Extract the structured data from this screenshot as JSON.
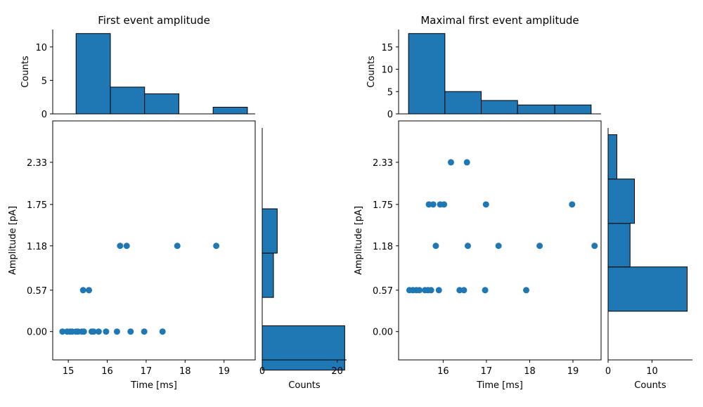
{
  "chart_data": [
    {
      "type": "scatter",
      "title": "First event amplitude",
      "xlabel": "Time [ms]",
      "ylabel": "Amplitude [pA]",
      "xlim": [
        14.6,
        19.8
      ],
      "ylim": [
        -0.39,
        2.9
      ],
      "xticks": [
        15,
        16,
        17,
        18,
        19
      ],
      "yticks": [
        0.0,
        0.57,
        1.18,
        1.75,
        2.33
      ],
      "ytick_labels": [
        "0.00",
        "0.57",
        "1.18",
        "1.75",
        "2.33"
      ],
      "points": [
        {
          "x": 14.85,
          "y": 0.0
        },
        {
          "x": 14.97,
          "y": 0.0
        },
        {
          "x": 15.05,
          "y": 0.0
        },
        {
          "x": 15.1,
          "y": 0.0
        },
        {
          "x": 15.2,
          "y": 0.0
        },
        {
          "x": 15.25,
          "y": 0.0
        },
        {
          "x": 15.35,
          "y": 0.0
        },
        {
          "x": 15.4,
          "y": 0.0
        },
        {
          "x": 15.6,
          "y": 0.0
        },
        {
          "x": 15.65,
          "y": 0.0
        },
        {
          "x": 15.78,
          "y": 0.0
        },
        {
          "x": 15.97,
          "y": 0.0
        },
        {
          "x": 16.25,
          "y": 0.0
        },
        {
          "x": 16.6,
          "y": 0.0
        },
        {
          "x": 16.95,
          "y": 0.0
        },
        {
          "x": 17.42,
          "y": 0.0
        },
        {
          "x": 15.38,
          "y": 0.57
        },
        {
          "x": 15.53,
          "y": 0.57
        },
        {
          "x": 16.33,
          "y": 1.18
        },
        {
          "x": 16.5,
          "y": 1.18
        },
        {
          "x": 17.8,
          "y": 1.18
        },
        {
          "x": 18.8,
          "y": 1.18
        }
      ],
      "hist_top": {
        "ylabel": "Counts",
        "yticks": [
          0,
          5,
          10
        ],
        "ylim": [
          0,
          12.6
        ],
        "bins": [
          {
            "x0": 15.2,
            "x1": 16.08,
            "count": 12
          },
          {
            "x0": 16.08,
            "x1": 16.96,
            "count": 4
          },
          {
            "x0": 16.96,
            "x1": 17.84,
            "count": 3
          },
          {
            "x0": 17.84,
            "x1": 18.72,
            "count": 0
          },
          {
            "x0": 18.72,
            "x1": 19.6,
            "count": 1
          }
        ]
      },
      "hist_right": {
        "xlabel": "Counts",
        "xticks": [
          0,
          20
        ],
        "xlim": [
          0,
          22.5
        ],
        "bins": [
          {
            "y0": -0.53,
            "y1": 0.08,
            "count": 22
          },
          {
            "y0": 0.47,
            "y1": 1.08,
            "count": 3
          },
          {
            "y0": 1.08,
            "y1": 1.69,
            "count": 4
          }
        ]
      }
    },
    {
      "type": "scatter",
      "title": "Maximal first event amplitude",
      "xlabel": "Time [ms]",
      "ylabel": "Amplitude [pA]",
      "xlim": [
        14.97,
        19.65
      ],
      "ylim": [
        -0.39,
        2.9
      ],
      "xticks": [
        16,
        17,
        18,
        19
      ],
      "yticks": [
        0.0,
        0.57,
        1.18,
        1.75,
        2.33
      ],
      "ytick_labels": [
        "0.00",
        "0.57",
        "1.18",
        "1.75",
        "2.33"
      ],
      "points": [
        {
          "x": 15.22,
          "y": 0.57
        },
        {
          "x": 15.3,
          "y": 0.57
        },
        {
          "x": 15.38,
          "y": 0.57
        },
        {
          "x": 15.45,
          "y": 0.57
        },
        {
          "x": 15.58,
          "y": 0.57
        },
        {
          "x": 15.65,
          "y": 0.57
        },
        {
          "x": 15.72,
          "y": 0.57
        },
        {
          "x": 15.9,
          "y": 0.57
        },
        {
          "x": 16.38,
          "y": 0.57
        },
        {
          "x": 16.48,
          "y": 0.57
        },
        {
          "x": 16.97,
          "y": 0.57
        },
        {
          "x": 17.92,
          "y": 0.57
        },
        {
          "x": 15.83,
          "y": 1.18
        },
        {
          "x": 16.57,
          "y": 1.18
        },
        {
          "x": 17.28,
          "y": 1.18
        },
        {
          "x": 18.23,
          "y": 1.18
        },
        {
          "x": 19.5,
          "y": 1.18
        },
        {
          "x": 15.67,
          "y": 1.75
        },
        {
          "x": 15.77,
          "y": 1.75
        },
        {
          "x": 15.93,
          "y": 1.75
        },
        {
          "x": 16.02,
          "y": 1.75
        },
        {
          "x": 16.99,
          "y": 1.75
        },
        {
          "x": 18.98,
          "y": 1.75
        },
        {
          "x": 16.18,
          "y": 2.33
        },
        {
          "x": 16.55,
          "y": 2.33
        }
      ],
      "hist_top": {
        "ylabel": "Counts",
        "yticks": [
          0,
          5,
          10,
          15
        ],
        "ylim": [
          0,
          18.9
        ],
        "bins": [
          {
            "x0": 15.2,
            "x1": 16.04,
            "count": 18
          },
          {
            "x0": 16.04,
            "x1": 16.88,
            "count": 5
          },
          {
            "x0": 16.88,
            "x1": 17.72,
            "count": 3
          },
          {
            "x0": 17.72,
            "x1": 18.58,
            "count": 2
          },
          {
            "x0": 18.58,
            "x1": 19.42,
            "count": 2
          }
        ]
      },
      "hist_right": {
        "xlabel": "Counts",
        "xticks": [
          0,
          10
        ],
        "xlim": [
          0,
          19.2
        ],
        "bins": [
          {
            "y0": 0.28,
            "y1": 0.89,
            "count": 18
          },
          {
            "y0": 0.89,
            "y1": 1.49,
            "count": 5
          },
          {
            "y0": 1.49,
            "y1": 2.1,
            "count": 6
          },
          {
            "y0": 2.1,
            "y1": 2.71,
            "count": 2
          }
        ]
      }
    }
  ]
}
